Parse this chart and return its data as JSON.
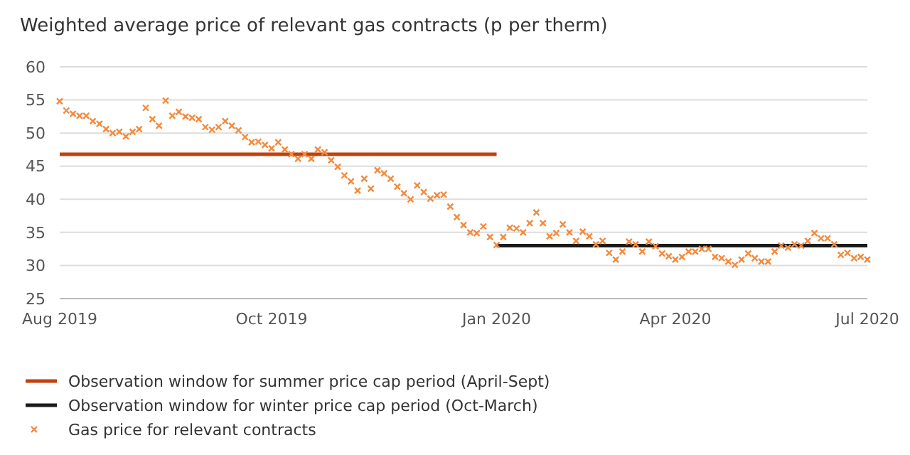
{
  "chart_data": {
    "type": "scatter",
    "title": "Weighted average price of relevant gas contracts (p per therm)",
    "categories": [
      "Aug 2019",
      null,
      null,
      null,
      null,
      null,
      null,
      null,
      null,
      null,
      null,
      null,
      null,
      null,
      null,
      null,
      null,
      null,
      null,
      null,
      null,
      null,
      null,
      null,
      null,
      null,
      null,
      null,
      null,
      null,
      null,
      null,
      "Oct 2019",
      null,
      null,
      null,
      null,
      null,
      null,
      null,
      null,
      null,
      null,
      null,
      null,
      null,
      null,
      null,
      null,
      null,
      null,
      null,
      null,
      null,
      null,
      null,
      null,
      null,
      null,
      null,
      null,
      null,
      null,
      null,
      null,
      null,
      "Jan 2020",
      null,
      null,
      null,
      null,
      null,
      null,
      null,
      null,
      null,
      null,
      null,
      null,
      null,
      null,
      null,
      null,
      null,
      null,
      null,
      null,
      null,
      null,
      null,
      null,
      null,
      null,
      "Apr 2020",
      null,
      null,
      null,
      null,
      null,
      null,
      null,
      null,
      null,
      null,
      null,
      null,
      null,
      null,
      null,
      null,
      null,
      null,
      null,
      null,
      null,
      null,
      null,
      null,
      null,
      null,
      null,
      null,
      "Jul 2020"
    ],
    "ylim": [
      25,
      60
    ],
    "yticks": [
      25,
      30,
      35,
      40,
      45,
      50,
      55,
      60
    ],
    "grid": "y",
    "legend": "bottom",
    "series": [
      {
        "name": "Observation window for summer price cap period (April-Sept)",
        "type": "line",
        "color": "#c2410c",
        "line_style": "solid",
        "marker": "none",
        "values": [
          46.8,
          46.8,
          46.8,
          46.8,
          46.8,
          46.8,
          46.8,
          46.8,
          46.8,
          46.8,
          46.8,
          46.8,
          46.8,
          46.8,
          46.8,
          46.8,
          46.8,
          46.8,
          46.8,
          46.8,
          46.8,
          46.8,
          46.8,
          46.8,
          46.8,
          46.8,
          46.8,
          46.8,
          46.8,
          46.8,
          46.8,
          46.8,
          46.8,
          46.8,
          46.8,
          46.8,
          46.8,
          46.8,
          46.8,
          46.8,
          46.8,
          46.8,
          46.8,
          46.8,
          46.8,
          46.8,
          46.8,
          46.8,
          46.8,
          46.8,
          46.8,
          46.8,
          46.8,
          46.8,
          46.8,
          46.8,
          46.8,
          46.8,
          46.8,
          46.8,
          46.8,
          46.8,
          46.8,
          46.8,
          46.8,
          46.8,
          46.8,
          null,
          null,
          null,
          null,
          null,
          null,
          null,
          null,
          null,
          null,
          null,
          null,
          null,
          null,
          null,
          null,
          null,
          null,
          null,
          null,
          null,
          null,
          null,
          null,
          null,
          null,
          null,
          null,
          null,
          null,
          null,
          null,
          null,
          null,
          null,
          null,
          null,
          null,
          null,
          null,
          null,
          null,
          null,
          null,
          null,
          null,
          null,
          null,
          null,
          null,
          null,
          null,
          null,
          null,
          null,
          null
        ]
      },
      {
        "name": "Observation window for winter price cap period (Oct-March)",
        "type": "line",
        "color": "#1a1a1a",
        "line_style": "solid",
        "marker": "none",
        "values": [
          null,
          null,
          null,
          null,
          null,
          null,
          null,
          null,
          null,
          null,
          null,
          null,
          null,
          null,
          null,
          null,
          null,
          null,
          null,
          null,
          null,
          null,
          null,
          null,
          null,
          null,
          null,
          null,
          null,
          null,
          null,
          null,
          null,
          null,
          null,
          null,
          null,
          null,
          null,
          null,
          null,
          null,
          null,
          null,
          null,
          null,
          null,
          null,
          null,
          null,
          null,
          null,
          null,
          null,
          null,
          null,
          null,
          null,
          null,
          null,
          null,
          null,
          null,
          null,
          null,
          null,
          33,
          33,
          33,
          33,
          33,
          33,
          33,
          33,
          33,
          33,
          33,
          33,
          33,
          33,
          33,
          33,
          33,
          33,
          33,
          33,
          33,
          33,
          33,
          33,
          33,
          33,
          33,
          33,
          33,
          33,
          33,
          33,
          33,
          33,
          33,
          33,
          33,
          33,
          33,
          33,
          33,
          33,
          33,
          33,
          33,
          33,
          33,
          33,
          33,
          33,
          33,
          33,
          33,
          33,
          33,
          33,
          33
        ]
      },
      {
        "name": "Gas price for relevant contracts",
        "color": "#f28a3c",
        "marker": "cross",
        "values": [
          54.8,
          53.4,
          52.9,
          52.6,
          52.6,
          51.8,
          51.4,
          50.6,
          50.0,
          50.2,
          49.5,
          50.2,
          50.6,
          53.8,
          52.1,
          51.1,
          54.9,
          52.6,
          53.2,
          52.5,
          52.3,
          52.1,
          50.9,
          50.5,
          50.9,
          51.8,
          51.1,
          50.4,
          49.4,
          48.6,
          48.7,
          48.2,
          47.7,
          48.6,
          47.5,
          46.8,
          46.1,
          46.8,
          46.1,
          47.5,
          47.1,
          45.9,
          44.9,
          43.6,
          42.7,
          41.3,
          43.1,
          41.6,
          44.4,
          43.9,
          43.1,
          41.9,
          40.9,
          40.0,
          42.1,
          41.1,
          40.1,
          40.6,
          40.7,
          38.9,
          37.3,
          36.1,
          35.0,
          34.9,
          35.9,
          34.3,
          33.1,
          34.3,
          35.7,
          35.6,
          35.0,
          36.4,
          38.0,
          36.4,
          34.4,
          34.9,
          36.2,
          35.0,
          33.7,
          35.1,
          34.4,
          33.2,
          33.7,
          31.9,
          30.9,
          32.1,
          33.6,
          33.2,
          32.1,
          33.6,
          32.9,
          31.8,
          31.4,
          30.9,
          31.3,
          32.1,
          32.1,
          32.5,
          32.5,
          31.3,
          31.1,
          30.6,
          30.1,
          30.9,
          31.8,
          31.1,
          30.6,
          30.6,
          32.1,
          33.0,
          32.7,
          33.2,
          33.0,
          33.7,
          34.9,
          34.1,
          34.1,
          33.2,
          31.6,
          31.9,
          31.1,
          31.3,
          30.9
        ]
      }
    ]
  }
}
